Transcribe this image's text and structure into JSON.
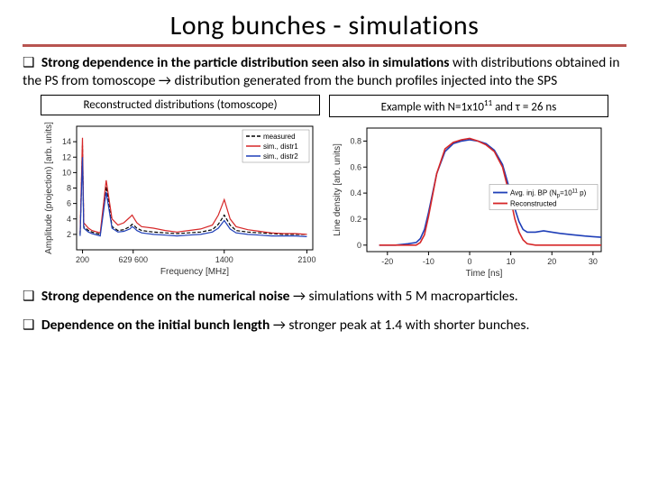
{
  "title": "Long bunches - simulations",
  "bullets": {
    "b1_prefix": "❑ ",
    "b1_bold": "Strong dependence in the particle distribution seen also in simulations",
    "b1_rest": " with distributions obtained in the PS from tomoscope → distribution generated from the bunch profiles injected into the SPS",
    "b2_prefix": "❑ ",
    "b2_bold": "Strong dependence on the numerical noise",
    "b2_rest": " → simulations with 5 M macroparticles.",
    "b3_prefix": "❑ ",
    "b3_bold": "Dependence on the initial bunch length",
    "b3_rest": " → stronger peak at 1.4 with shorter bunches."
  },
  "left_chart": {
    "caption": "Reconstructed distributions (tomoscope)",
    "type": "line",
    "xlabel": "Frequency [MHz]",
    "ylabel": "Amplitude (projection) [arb. units]",
    "xticks": [
      200,
      629,
      1400,
      2100
    ],
    "xtick_labels": [
      "200",
      "629 600",
      "1400",
      "2100"
    ],
    "xlim": [
      150,
      2150
    ],
    "ylim": [
      0,
      16
    ],
    "yticks": [
      2,
      4,
      6,
      8,
      10,
      12,
      14
    ],
    "legend": {
      "position": "top-right",
      "items": [
        {
          "label": "measured",
          "color": "#000000",
          "dash": "4,2"
        },
        {
          "label": "sim., distr1",
          "color": "#d62728",
          "dash": "none"
        },
        {
          "label": "sim., distr2",
          "color": "#1f3fb8",
          "dash": "none"
        }
      ]
    },
    "series": {
      "measured": {
        "color": "#000000",
        "dash": "4,2",
        "width": 1.2,
        "x": [
          180,
          200,
          210,
          250,
          280,
          350,
          400,
          450,
          500,
          550,
          600,
          620,
          640,
          660,
          700,
          800,
          900,
          1000,
          1100,
          1200,
          1300,
          1350,
          1400,
          1450,
          1500,
          1600,
          1700,
          1800,
          1900,
          2000,
          2100
        ],
        "y": [
          2.0,
          13.5,
          3.0,
          2.5,
          2.3,
          2.0,
          8.2,
          3.0,
          2.5,
          2.6,
          3.0,
          3.3,
          3.1,
          2.8,
          2.5,
          2.3,
          2.2,
          2.1,
          2.2,
          2.3,
          2.6,
          3.3,
          4.5,
          3.2,
          2.5,
          2.3,
          2.2,
          2.1,
          2.0,
          2.0,
          2.0
        ]
      },
      "distr1": {
        "color": "#d62728",
        "dash": "none",
        "width": 1.2,
        "x": [
          180,
          200,
          210,
          250,
          280,
          350,
          400,
          450,
          500,
          550,
          600,
          620,
          640,
          660,
          700,
          800,
          900,
          1000,
          1100,
          1200,
          1300,
          1350,
          1400,
          1450,
          1500,
          1600,
          1700,
          1800,
          1900,
          2000,
          2100
        ],
        "y": [
          2.2,
          14.5,
          3.5,
          2.8,
          2.5,
          2.2,
          9.0,
          4.0,
          3.2,
          3.5,
          4.2,
          4.5,
          4.0,
          3.5,
          3.0,
          2.8,
          2.5,
          2.3,
          2.5,
          2.7,
          3.2,
          4.5,
          6.5,
          4.0,
          3.0,
          2.6,
          2.4,
          2.2,
          2.1,
          2.1,
          2.0
        ]
      },
      "distr2": {
        "color": "#1f3fb8",
        "dash": "none",
        "width": 1.2,
        "x": [
          180,
          200,
          210,
          250,
          280,
          350,
          400,
          450,
          500,
          550,
          600,
          620,
          640,
          660,
          700,
          800,
          900,
          1000,
          1100,
          1200,
          1300,
          1350,
          1400,
          1450,
          1500,
          1600,
          1700,
          1800,
          1900,
          2000,
          2100
        ],
        "y": [
          1.8,
          12.0,
          2.8,
          2.3,
          2.1,
          1.8,
          7.5,
          2.8,
          2.3,
          2.4,
          2.7,
          3.0,
          2.8,
          2.5,
          2.2,
          2.0,
          1.9,
          1.8,
          1.9,
          2.0,
          2.3,
          2.8,
          3.8,
          2.7,
          2.2,
          2.0,
          1.9,
          1.8,
          1.8,
          1.8,
          1.7
        ]
      }
    }
  },
  "right_chart": {
    "caption_html": "Example with N=1x10<sup>11</sup> and τ = 26 ns",
    "caption_prefix": "Example with N=1x10",
    "caption_sup": "11",
    "caption_suffix": " and τ = 26 ns",
    "type": "line",
    "xlabel": "Time [ns]",
    "ylabel": "Line density [arb. units]",
    "xlim": [
      -25,
      32
    ],
    "ylim": [
      -0.05,
      0.9
    ],
    "xticks": [
      -20,
      -10,
      0,
      10,
      20,
      30
    ],
    "yticks": [
      0,
      0.2,
      0.4,
      0.6,
      0.8
    ],
    "legend": {
      "position": "middle-right",
      "items": [
        {
          "label_prefix": "Avg. inj. BP (N",
          "label_sub": "p",
          "label_suffix": "=10",
          "label_sup": "11",
          "label_end": " p)",
          "color": "#1f3fb8"
        },
        {
          "label": "Reconstructed",
          "color": "#d62728"
        }
      ]
    },
    "series": {
      "avg": {
        "color": "#1f3fb8",
        "width": 1.6,
        "x": [
          -22,
          -18,
          -15,
          -13,
          -12,
          -11,
          -10,
          -8,
          -6,
          -4,
          -2,
          0,
          2,
          4,
          6,
          8,
          10,
          11,
          12,
          13,
          14,
          16,
          18,
          20,
          22,
          25,
          28,
          30,
          32
        ],
        "y": [
          0.0,
          0.0,
          0.01,
          0.02,
          0.05,
          0.12,
          0.25,
          0.55,
          0.72,
          0.78,
          0.8,
          0.81,
          0.8,
          0.78,
          0.73,
          0.62,
          0.4,
          0.28,
          0.18,
          0.12,
          0.1,
          0.1,
          0.11,
          0.1,
          0.09,
          0.08,
          0.07,
          0.065,
          0.06
        ]
      },
      "recon": {
        "color": "#d62728",
        "width": 1.6,
        "x": [
          -22,
          -18,
          -15,
          -13,
          -12,
          -11,
          -10,
          -8,
          -6,
          -4,
          -2,
          0,
          2,
          4,
          6,
          8,
          10,
          11,
          12,
          13,
          14,
          16,
          18,
          20,
          22,
          25,
          28,
          30,
          32
        ],
        "y": [
          0.0,
          0.0,
          0.0,
          0.0,
          0.02,
          0.08,
          0.22,
          0.55,
          0.74,
          0.79,
          0.81,
          0.82,
          0.8,
          0.77,
          0.72,
          0.6,
          0.35,
          0.2,
          0.1,
          0.04,
          0.01,
          0.0,
          0.0,
          0.0,
          0.0,
          0.0,
          0.0,
          0.0,
          0.0
        ]
      }
    }
  }
}
